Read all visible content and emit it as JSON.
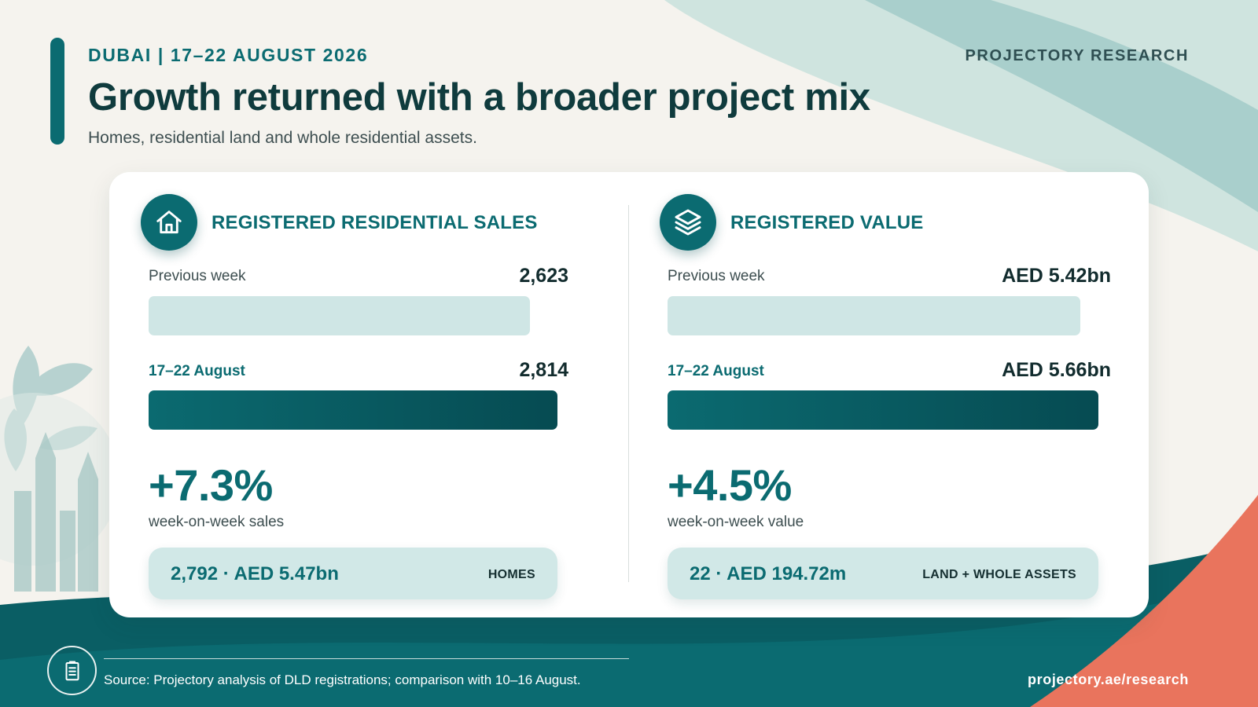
{
  "header": {
    "kicker": "DUBAI | 17–22 AUGUST 2026",
    "title": "Growth returned with a broader project mix",
    "subtitle": "Homes, residential land and whole residential assets.",
    "brand": "PROJECTORY RESEARCH"
  },
  "colors": {
    "accent": "#0b6b71",
    "dark_teal": "#064b52",
    "light_teal": "#cfe6e5",
    "coral": "#e9745d"
  },
  "panels": {
    "sales": {
      "icon": "house-icon",
      "title": "REGISTERED RESIDENTIAL SALES",
      "previous": {
        "label": "Previous week",
        "value": "2,623",
        "amount": 2623
      },
      "current": {
        "label": "17–22 August",
        "value": "2,814",
        "amount": 2814
      },
      "change": "+7.3%",
      "change_label": "week-on-week sales",
      "breakdown": {
        "value": "2,792 · AED 5.47bn",
        "tag": "HOMES"
      }
    },
    "value": {
      "icon": "layers-icon",
      "title": "REGISTERED VALUE",
      "previous": {
        "label": "Previous week",
        "value": "AED 5.42bn",
        "amount": 5.42
      },
      "current": {
        "label": "17–22 August",
        "value": "AED 5.66bn",
        "amount": 5.66
      },
      "change": "+4.5%",
      "change_label": "week-on-week value",
      "breakdown": {
        "value": "22 · AED 194.72m",
        "tag": "LAND + WHOLE ASSETS"
      }
    }
  },
  "footer": {
    "icon": "clipboard-icon",
    "source": "Source: Projectory analysis of DLD registrations; comparison with 10–16 August.",
    "url": "projectory.ae/research"
  }
}
